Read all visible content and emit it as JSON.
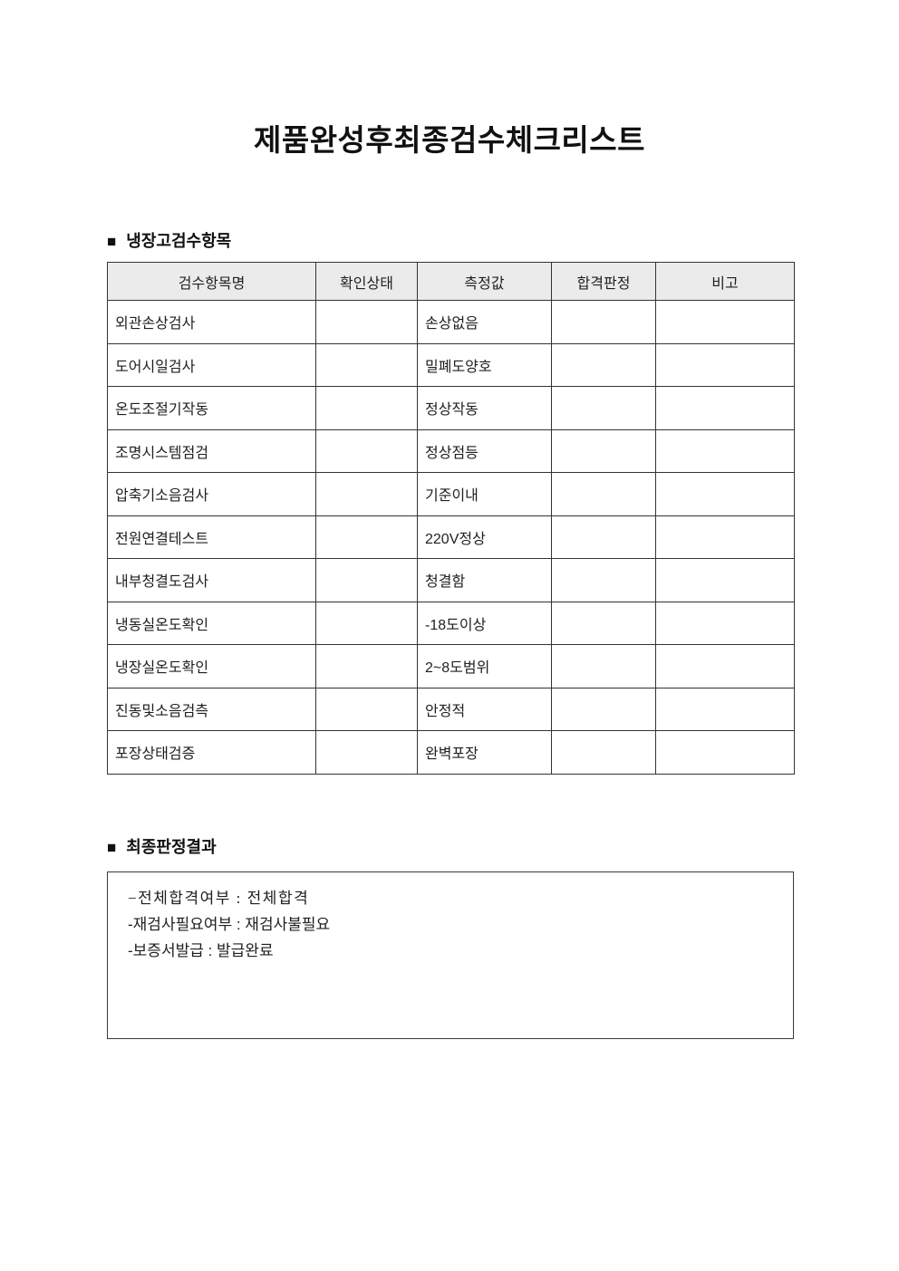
{
  "document": {
    "title": "제품완성후최종검수체크리스트"
  },
  "sections": {
    "inspection": {
      "bullet": "■",
      "heading": "냉장고검수항목",
      "table": {
        "headers": [
          "검수항목명",
          "확인상태",
          "측정값",
          "합격판정",
          "비고"
        ],
        "rows": [
          {
            "item": "외관손상검사",
            "status": "",
            "value": "손상없음",
            "pass": "",
            "note": ""
          },
          {
            "item": "도어시일검사",
            "status": "",
            "value": "밀폐도양호",
            "pass": "",
            "note": ""
          },
          {
            "item": "온도조절기작동",
            "status": "",
            "value": "정상작동",
            "pass": "",
            "note": ""
          },
          {
            "item": "조명시스템점검",
            "status": "",
            "value": "정상점등",
            "pass": "",
            "note": ""
          },
          {
            "item": "압축기소음검사",
            "status": "",
            "value": "기준이내",
            "pass": "",
            "note": ""
          },
          {
            "item": "전원연결테스트",
            "status": "",
            "value": "220V정상",
            "pass": "",
            "note": ""
          },
          {
            "item": "내부청결도검사",
            "status": "",
            "value": "청결함",
            "pass": "",
            "note": ""
          },
          {
            "item": "냉동실온도확인",
            "status": "",
            "value": "-18도이상",
            "pass": "",
            "note": ""
          },
          {
            "item": "냉장실온도확인",
            "status": "",
            "value": "2~8도범위",
            "pass": "",
            "note": ""
          },
          {
            "item": "진동및소음검측",
            "status": "",
            "value": "안정적",
            "pass": "",
            "note": ""
          },
          {
            "item": "포장상태검증",
            "status": "",
            "value": "완벽포장",
            "pass": "",
            "note": ""
          }
        ]
      }
    },
    "final": {
      "bullet": "■",
      "heading": "최종판정결과",
      "lines": [
        "−전체합격여부 : 전체합격",
        "-재검사필요여부 : 재검사불필요",
        "-보증서발급 : 발급완료"
      ]
    }
  },
  "colors": {
    "table_header_background": "#ebebeb",
    "table_border": "#333333",
    "text": "#1f1f1f",
    "page_background": "#ffffff"
  }
}
